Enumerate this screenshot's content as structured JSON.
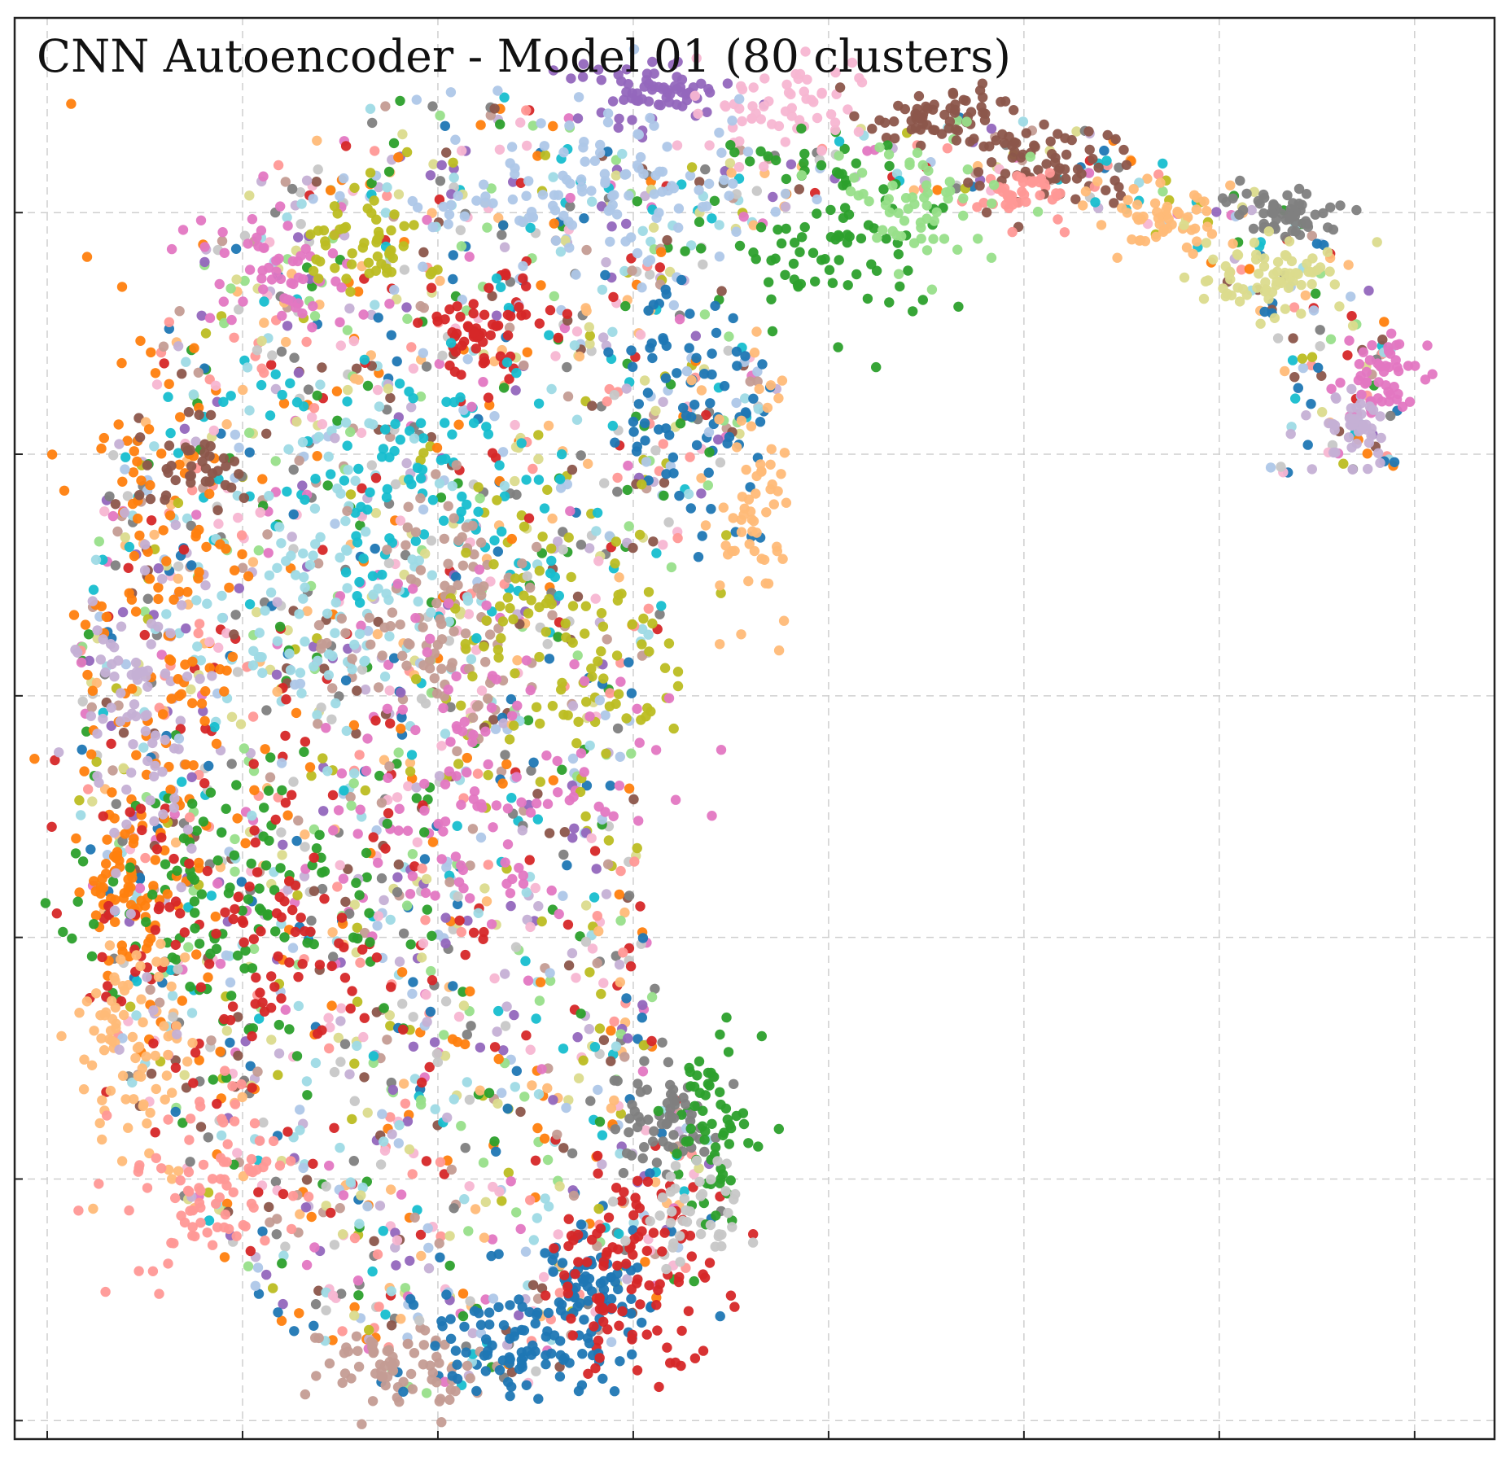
{
  "chart_data": {
    "type": "scatter",
    "title": "CNN Autoencoder - Model 01 (80 clusters)",
    "xlabel": "",
    "ylabel": "",
    "xlim": [
      0,
      100
    ],
    "ylim": [
      0,
      100
    ],
    "x_gridlines": [
      2.2,
      15.4,
      28.6,
      41.8,
      55.0,
      68.2,
      81.4,
      94.6
    ],
    "y_gridlines": [
      1.3,
      18.3,
      35.3,
      52.3,
      69.3,
      86.3
    ],
    "grid": true,
    "tick_labels": false,
    "legend": "none",
    "palette": [
      "#1f77b4",
      "#aec7e8",
      "#ff7f0e",
      "#ffbb78",
      "#2ca02c",
      "#98df8a",
      "#d62728",
      "#ff9896",
      "#9467bd",
      "#c5b0d5",
      "#8c564b",
      "#c49c94",
      "#e377c2",
      "#f7b6d2",
      "#7f7f7f",
      "#c7c7c7",
      "#bcbd22",
      "#dbdb8d",
      "#17becf",
      "#9edae5"
    ],
    "num_clusters": 80,
    "cluster_groups": [
      {
        "color": "#9467bd",
        "x": 43,
        "y": 95,
        "spread": [
          2.5,
          1.2
        ],
        "points": 70
      },
      {
        "color": "#f7b6d2",
        "x": 52,
        "y": 94,
        "spread": [
          3,
          1.5
        ],
        "points": 60
      },
      {
        "color": "#8c564b",
        "x": 63,
        "y": 93,
        "spread": [
          3,
          1.0
        ],
        "points": 60
      },
      {
        "color": "#8c564b",
        "x": 70,
        "y": 89.5,
        "spread": [
          3,
          1.3
        ],
        "points": 70
      },
      {
        "color": "#ff9896",
        "x": 68,
        "y": 87.5,
        "spread": [
          2.5,
          1.0
        ],
        "points": 40
      },
      {
        "color": "#ffbb78",
        "x": 78,
        "y": 86,
        "spread": [
          2.5,
          1.3
        ],
        "points": 50
      },
      {
        "color": "#7f7f7f",
        "x": 85.5,
        "y": 86.3,
        "spread": [
          1.8,
          1.0
        ],
        "points": 60
      },
      {
        "color": "#dbdb8d",
        "x": 85,
        "y": 82,
        "spread": [
          3,
          1.5
        ],
        "points": 70
      },
      {
        "color": "#e377c2",
        "x": 92.5,
        "y": 74.5,
        "spread": [
          1.2,
          1.8
        ],
        "points": 50
      },
      {
        "color": "#c5b0d5",
        "x": 90.5,
        "y": 71,
        "spread": [
          1.5,
          1.5
        ],
        "points": 40
      },
      {
        "color": "#2ca02c",
        "x": 55,
        "y": 85,
        "spread": [
          4,
          3
        ],
        "points": 90
      },
      {
        "color": "#98df8a",
        "x": 61,
        "y": 87,
        "spread": [
          3,
          2.5
        ],
        "points": 60
      },
      {
        "color": "#aec7e8",
        "x": 38,
        "y": 88,
        "spread": [
          6,
          3
        ],
        "points": 120
      },
      {
        "color": "#d62728",
        "x": 32,
        "y": 78,
        "spread": [
          2,
          2
        ],
        "points": 60
      },
      {
        "color": "#1f77b4",
        "x": 46,
        "y": 73,
        "spread": [
          3,
          4
        ],
        "points": 70
      },
      {
        "color": "#17becf",
        "x": 27,
        "y": 68,
        "spread": [
          6,
          5
        ],
        "points": 110
      },
      {
        "color": "#9edae5",
        "x": 22,
        "y": 60,
        "spread": [
          6,
          6
        ],
        "points": 110
      },
      {
        "color": "#ff7f0e",
        "x": 10,
        "y": 58,
        "spread": [
          3,
          12
        ],
        "points": 140
      },
      {
        "color": "#ff7f0e",
        "x": 7,
        "y": 38,
        "spread": [
          1.2,
          3
        ],
        "points": 60
      },
      {
        "color": "#c49c94",
        "x": 29,
        "y": 57,
        "spread": [
          4,
          5
        ],
        "points": 100
      },
      {
        "color": "#bcbd22",
        "x": 38,
        "y": 55,
        "spread": [
          4,
          5
        ],
        "points": 100
      },
      {
        "color": "#e377c2",
        "x": 30,
        "y": 46,
        "spread": [
          6,
          6
        ],
        "points": 110
      },
      {
        "color": "#2ca02c",
        "x": 14,
        "y": 38,
        "spread": [
          5,
          5
        ],
        "points": 100
      },
      {
        "color": "#d62728",
        "x": 16,
        "y": 34,
        "spread": [
          6,
          6
        ],
        "points": 120
      },
      {
        "color": "#ffbb78",
        "x": 8,
        "y": 28,
        "spread": [
          2,
          4
        ],
        "points": 80
      },
      {
        "color": "#ff9896",
        "x": 13,
        "y": 18,
        "spread": [
          3,
          3
        ],
        "points": 80
      },
      {
        "color": "#c49c94",
        "x": 26,
        "y": 5,
        "spread": [
          3,
          1.5
        ],
        "points": 70
      },
      {
        "color": "#1f77b4",
        "x": 34,
        "y": 7,
        "spread": [
          3,
          2.5
        ],
        "points": 80
      },
      {
        "color": "#1f77b4",
        "x": 39,
        "y": 10,
        "spread": [
          2.5,
          3
        ],
        "points": 80
      },
      {
        "color": "#d62728",
        "x": 42,
        "y": 12,
        "spread": [
          3,
          4
        ],
        "points": 110
      },
      {
        "color": "#7f7f7f",
        "x": 44,
        "y": 23,
        "spread": [
          2,
          2
        ],
        "points": 60
      },
      {
        "color": "#2ca02c",
        "x": 47,
        "y": 22,
        "spread": [
          1.5,
          3
        ],
        "points": 60
      },
      {
        "color": "#c7c7c7",
        "x": 46,
        "y": 16,
        "spread": [
          2,
          2
        ],
        "points": 40
      },
      {
        "color": "#c5b0d5",
        "x": 8,
        "y": 50,
        "spread": [
          2,
          8
        ],
        "points": 80
      },
      {
        "color": "#ffbb78",
        "x": 50,
        "y": 65,
        "spread": [
          1.5,
          5
        ],
        "points": 60
      },
      {
        "color": "#e377c2",
        "x": 18,
        "y": 82,
        "spread": [
          3,
          2.5
        ],
        "points": 60
      },
      {
        "color": "#bcbd22",
        "x": 24,
        "y": 84,
        "spread": [
          2,
          2
        ],
        "points": 50
      },
      {
        "color": "#8c564b",
        "x": 12,
        "y": 68,
        "spread": [
          2,
          2
        ],
        "points": 40
      }
    ],
    "background_points": 2600,
    "shape": "crescent"
  }
}
